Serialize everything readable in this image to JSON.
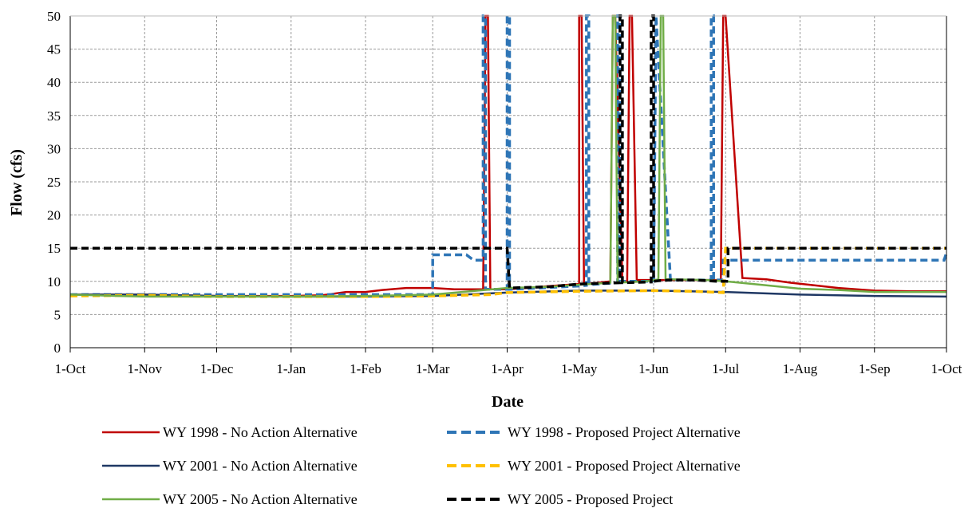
{
  "chart_data": {
    "type": "line",
    "title": "",
    "xlabel": "Date",
    "ylabel": "Flow (cfs)",
    "x_tick_labels": [
      "1-Oct",
      "1-Nov",
      "1-Dec",
      "1-Jan",
      "1-Feb",
      "1-Mar",
      "1-Apr",
      "1-May",
      "1-Jun",
      "1-Jul",
      "1-Aug",
      "1-Sep",
      "1-Oct"
    ],
    "x_tick_days": [
      0,
      31,
      61,
      92,
      123,
      151,
      182,
      212,
      243,
      273,
      304,
      335,
      365
    ],
    "xlim_days": [
      0,
      365
    ],
    "ylim": [
      0,
      50
    ],
    "y_ticks": [
      0,
      5,
      10,
      15,
      20,
      25,
      30,
      35,
      40,
      45,
      50
    ],
    "grid": true,
    "legend_position": "bottom",
    "series": [
      {
        "name": "WY 1998 - No Action Alternative",
        "color": "#c00000",
        "dashed": false,
        "x": [
          0,
          31,
          61,
          92,
          105,
          115,
          123,
          130,
          140,
          151,
          160,
          172,
          173,
          174,
          175,
          182,
          190,
          200,
          212,
          212,
          213,
          214,
          220,
          225,
          226,
          227,
          230,
          232,
          233,
          234,
          236,
          238,
          240,
          250,
          265,
          271,
          272,
          273,
          280,
          290,
          300,
          310,
          320,
          335,
          350,
          365
        ],
        "y": [
          8.0,
          8.0,
          7.8,
          7.8,
          7.9,
          8.4,
          8.4,
          8.7,
          9.0,
          9.0,
          8.8,
          8.8,
          50,
          50,
          8.8,
          8.8,
          9.0,
          9.3,
          9.6,
          50,
          50,
          9.6,
          9.8,
          10.0,
          50,
          50,
          10.0,
          10.0,
          50,
          50,
          10.2,
          10.2,
          10.2,
          10.2,
          10.2,
          10.2,
          50,
          50,
          10.5,
          10.3,
          9.8,
          9.4,
          9.0,
          8.6,
          8.5,
          8.5
        ]
      },
      {
        "name": "WY 1998 - Proposed Project Alternative",
        "color": "#2e75b6",
        "dashed": true,
        "x": [
          0,
          150,
          151,
          151,
          165,
          168,
          172,
          172,
          173,
          173,
          175,
          182,
          182,
          183,
          183,
          195,
          212,
          215,
          215,
          216,
          216,
          220,
          228,
          228,
          229,
          229,
          242,
          243,
          244,
          244,
          250,
          265,
          267,
          267,
          268,
          268,
          272,
          272,
          273,
          280,
          300,
          320,
          350,
          364,
          365
        ],
        "y": [
          8.0,
          8.0,
          8.0,
          14.0,
          14.0,
          13.2,
          13.2,
          50,
          50,
          8.8,
          8.8,
          8.8,
          50,
          50,
          8.8,
          9.0,
          9.3,
          9.4,
          50,
          50,
          9.5,
          9.6,
          9.8,
          50,
          50,
          10.0,
          10.0,
          10.1,
          50,
          50,
          10.2,
          10.2,
          10.2,
          50,
          50,
          10.2,
          10.2,
          13.2,
          13.2,
          13.2,
          13.2,
          13.2,
          13.2,
          13.2,
          14.3
        ]
      },
      {
        "name": "WY 2001 - No Action Alternative",
        "color": "#1f3864",
        "dashed": false,
        "x": [
          0,
          31,
          61,
          92,
          123,
          151,
          182,
          212,
          243,
          273,
          304,
          335,
          365
        ],
        "y": [
          8.0,
          8.0,
          7.8,
          7.7,
          7.7,
          7.8,
          8.3,
          8.6,
          8.6,
          8.4,
          8.0,
          7.8,
          7.7
        ]
      },
      {
        "name": "WY 2001 - Proposed Project Alternative",
        "color": "#ffc000",
        "dashed": true,
        "x": [
          0,
          31,
          61,
          92,
          123,
          151,
          175,
          182,
          212,
          243,
          260,
          272,
          273,
          275,
          300,
          320,
          365
        ],
        "y": [
          7.8,
          7.9,
          7.7,
          7.7,
          7.7,
          7.8,
          8.0,
          8.3,
          8.5,
          8.6,
          8.5,
          8.3,
          15.0,
          15.0,
          15.0,
          15.0,
          15.0
        ]
      },
      {
        "name": "WY 2005 - No Action Alternative",
        "color": "#70ad47",
        "dashed": false,
        "x": [
          0,
          20,
          31,
          61,
          92,
          123,
          151,
          182,
          200,
          212,
          225,
          226,
          227,
          228,
          240,
          245,
          246,
          247,
          248,
          250,
          265,
          273,
          290,
          304,
          320,
          335,
          365
        ],
        "y": [
          8.0,
          7.8,
          7.7,
          7.7,
          7.7,
          7.8,
          8.0,
          9.0,
          9.2,
          9.5,
          9.8,
          50,
          50,
          9.8,
          10.0,
          10.3,
          50,
          50,
          10.3,
          10.3,
          10.2,
          10.0,
          9.4,
          8.9,
          8.7,
          8.4,
          8.4
        ]
      },
      {
        "name": "WY 2005 - Proposed Project",
        "color": "#000000",
        "dashed": true,
        "x": [
          0,
          182,
          182,
          183,
          200,
          212,
          229,
          229,
          230,
          230,
          241,
          242,
          242,
          243,
          243,
          245,
          250,
          260,
          270,
          273,
          274,
          274,
          300,
          330,
          365
        ],
        "y": [
          15.0,
          15.0,
          15.0,
          9.0,
          9.2,
          9.6,
          9.8,
          50,
          50,
          9.8,
          9.9,
          9.9,
          50,
          50,
          10.0,
          10.1,
          10.2,
          10.2,
          10.0,
          10.0,
          10.0,
          15.0,
          15.0,
          15.0,
          15.0
        ]
      }
    ]
  }
}
